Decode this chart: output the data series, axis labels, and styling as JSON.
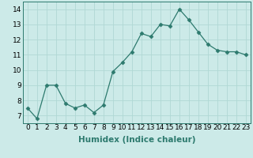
{
  "x": [
    0,
    1,
    2,
    3,
    4,
    5,
    6,
    7,
    8,
    9,
    10,
    11,
    12,
    13,
    14,
    15,
    16,
    17,
    18,
    19,
    20,
    21,
    22,
    23
  ],
  "y": [
    7.5,
    6.8,
    9.0,
    9.0,
    7.8,
    7.5,
    7.7,
    7.2,
    7.7,
    9.9,
    10.5,
    11.2,
    12.4,
    12.2,
    13.0,
    12.9,
    14.0,
    13.3,
    12.5,
    11.7,
    11.3,
    11.2,
    11.2,
    11.0
  ],
  "line_color": "#2d7a6e",
  "marker": "D",
  "marker_size": 2.5,
  "bg_color": "#cceae8",
  "grid_color": "#b0d8d4",
  "axis_color": "#2d7a6e",
  "xlabel": "Humidex (Indice chaleur)",
  "ylim": [
    6.5,
    14.5
  ],
  "xlim": [
    -0.5,
    23.5
  ],
  "yticks": [
    7,
    8,
    9,
    10,
    11,
    12,
    13,
    14
  ],
  "xticks": [
    0,
    1,
    2,
    3,
    4,
    5,
    6,
    7,
    8,
    9,
    10,
    11,
    12,
    13,
    14,
    15,
    16,
    17,
    18,
    19,
    20,
    21,
    22,
    23
  ],
  "xlabel_fontsize": 7.5,
  "tick_fontsize": 6.5
}
